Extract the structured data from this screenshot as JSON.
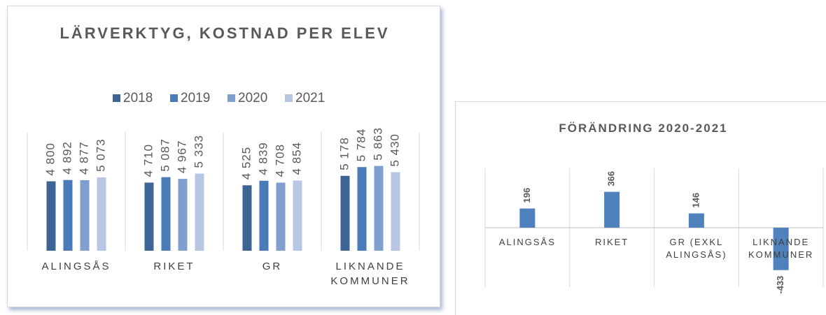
{
  "chart_data": [
    {
      "type": "bar",
      "title": "LÄRVERKTYG, KOSTNAD PER ELEV",
      "categories": [
        "ALINGSÅS",
        "RIKET",
        "GR",
        "LIKNANDE KOMMUNER"
      ],
      "series": [
        {
          "name": "2018",
          "color": "#3d6594",
          "values": [
            4800,
            4710,
            4525,
            5178
          ],
          "value_labels": [
            "4 800",
            "4 710",
            "4 525",
            "5 178"
          ]
        },
        {
          "name": "2019",
          "color": "#4a7ab8",
          "values": [
            4892,
            5087,
            4839,
            5784
          ],
          "value_labels": [
            "4 892",
            "5 087",
            "4 839",
            "5 784"
          ]
        },
        {
          "name": "2020",
          "color": "#7f9fce",
          "values": [
            4877,
            4967,
            4708,
            5863
          ],
          "value_labels": [
            "4 877",
            "4 967",
            "4 708",
            "5 863"
          ]
        },
        {
          "name": "2021",
          "color": "#b6c6e3",
          "values": [
            5073,
            5333,
            4854,
            5430
          ],
          "value_labels": [
            "5 073",
            "5 333",
            "4 854",
            "5 430"
          ]
        }
      ],
      "legend": "top"
    },
    {
      "type": "bar",
      "title": "FÖRÄNDRING 2020-2021",
      "categories": [
        "ALINGSÅS",
        "RIKET",
        "GR (EXKL ALINGSÅS)",
        "LIKNANDE KOMMUNER"
      ],
      "values": [
        196,
        366,
        146,
        -433
      ],
      "color": "#4f81bd"
    }
  ]
}
